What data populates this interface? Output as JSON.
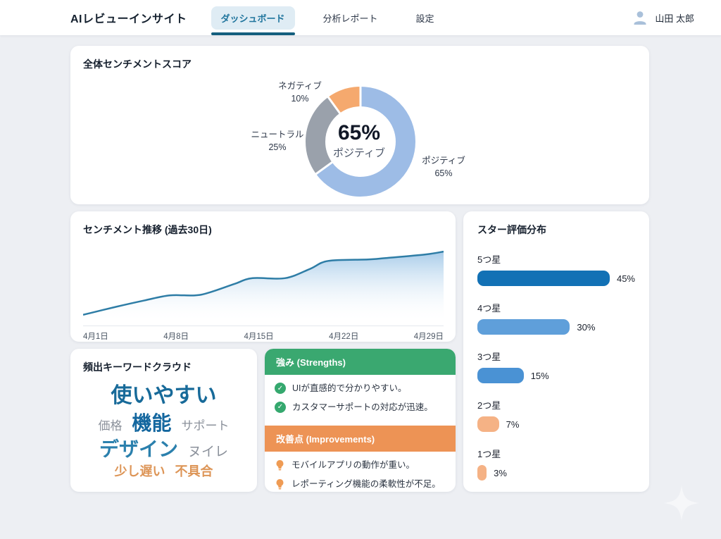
{
  "header": {
    "app_title": "AIレビューインサイト",
    "tabs": [
      {
        "label": "ダッシュボード",
        "active": true
      },
      {
        "label": "分析レポート",
        "active": false
      },
      {
        "label": "設定",
        "active": false
      }
    ],
    "user": {
      "name": "山田 太郎"
    }
  },
  "colors": {
    "background": "#edeff3",
    "card": "#ffffff",
    "accent_teal": "#20759d",
    "tab_underline": "#155f7e",
    "donut_positive": "#9dbce6",
    "donut_neutral": "#9aa1ab",
    "donut_negative": "#f5a96e",
    "trend_line": "#2e7da6",
    "trend_fill_top": "#a3c9e8",
    "bar_5star": "#1271b5",
    "bar_4star": "#5f9fda",
    "bar_3star": "#4a92d4",
    "bar_low": "#f5b285",
    "strengths_green": "#3aa870",
    "improvements_orange": "#ed9355"
  },
  "cards": {
    "sentiment_score": {
      "title": "全体センチメントスコア"
    },
    "trend": {
      "title": "センチメント推移 (過去30日)"
    },
    "star_rating": {
      "title": "スター評価分布"
    },
    "keyword_cloud": {
      "title": "頻出キーワードクラウド"
    },
    "insights": {
      "strengths": {
        "title": "強み (Strengths)",
        "items": [
          "UIが直感的で分かりやすい。",
          "カスタマーサポートの対応が迅速。"
        ]
      },
      "improvements": {
        "title": "改善点 (Improvements)",
        "items": [
          "モバイルアプリの動作が重い。",
          "レポーティング機能の柔軟性が不足。"
        ]
      }
    }
  },
  "chart_data": [
    {
      "id": "sentiment_donut",
      "type": "pie",
      "title": "全体センチメントスコア",
      "labels": [
        "ポジティブ",
        "ニュートラル",
        "ネガティブ"
      ],
      "values": [
        65,
        25,
        10
      ],
      "value_labels": [
        "65%",
        "25%",
        "10%"
      ],
      "colors": [
        "#9dbce6",
        "#9aa1ab",
        "#f5a96e"
      ],
      "center": {
        "value": "65%",
        "label": "ポジティブ"
      },
      "legend_position": "outside-callouts"
    },
    {
      "id": "sentiment_trend",
      "type": "area",
      "title": "センチメント推移 (過去30日)",
      "x_tick_labels": [
        "4月1日",
        "4月8日",
        "4月15日",
        "4月22日",
        "4月29日"
      ],
      "ylim": [
        0,
        100
      ],
      "grid": false,
      "line_color": "#2e7da6",
      "points": [
        [
          0.0,
          9
        ],
        [
          0.09,
          20
        ],
        [
          0.17,
          29
        ],
        [
          0.24,
          36
        ],
        [
          0.31,
          36
        ],
        [
          0.35,
          40
        ],
        [
          0.42,
          52
        ],
        [
          0.47,
          60
        ],
        [
          0.56,
          60
        ],
        [
          0.63,
          73
        ],
        [
          0.68,
          84
        ],
        [
          0.79,
          86
        ],
        [
          0.84,
          88
        ],
        [
          0.95,
          93
        ],
        [
          1.0,
          97
        ]
      ]
    },
    {
      "id": "star_distribution",
      "type": "bar",
      "orientation": "horizontal",
      "title": "スター評価分布",
      "categories": [
        "5つ星",
        "4つ星",
        "3つ星",
        "2つ星",
        "1つ星"
      ],
      "values": [
        45,
        30,
        15,
        7,
        3
      ],
      "value_labels": [
        "45%",
        "30%",
        "15%",
        "7%",
        "3%"
      ],
      "colors": [
        "#1271b5",
        "#5f9fda",
        "#4a92d4",
        "#f5b285",
        "#f5b285"
      ],
      "xlim": [
        0,
        45
      ]
    }
  ],
  "keywords": {
    "rows": [
      [
        {
          "text": "使いやすい",
          "sentiment": "positive",
          "size": 30,
          "weight": 700,
          "color": "#176a99"
        }
      ],
      [
        {
          "text": "価格",
          "sentiment": "neutral",
          "size": 17,
          "weight": 400,
          "color": "#8b919b"
        },
        {
          "text": "機能",
          "sentiment": "positive",
          "size": 28,
          "weight": 700,
          "color": "#14679f"
        },
        {
          "text": "サポート",
          "sentiment": "neutral",
          "size": 17,
          "weight": 400,
          "color": "#8b919b"
        }
      ],
      [
        {
          "text": "デザイン",
          "sentiment": "positive",
          "size": 28,
          "weight": 700,
          "color": "#2b80ad"
        },
        {
          "text": "ヌイレ",
          "sentiment": "neutral",
          "size": 19,
          "weight": 400,
          "color": "#8b919b"
        }
      ],
      [
        {
          "text": "少し遅い",
          "sentiment": "negative",
          "size": 18,
          "weight": 700,
          "color": "#dd9557"
        },
        {
          "text": "不具合",
          "sentiment": "negative",
          "size": 18,
          "weight": 700,
          "color": "#dd9557"
        }
      ]
    ]
  }
}
